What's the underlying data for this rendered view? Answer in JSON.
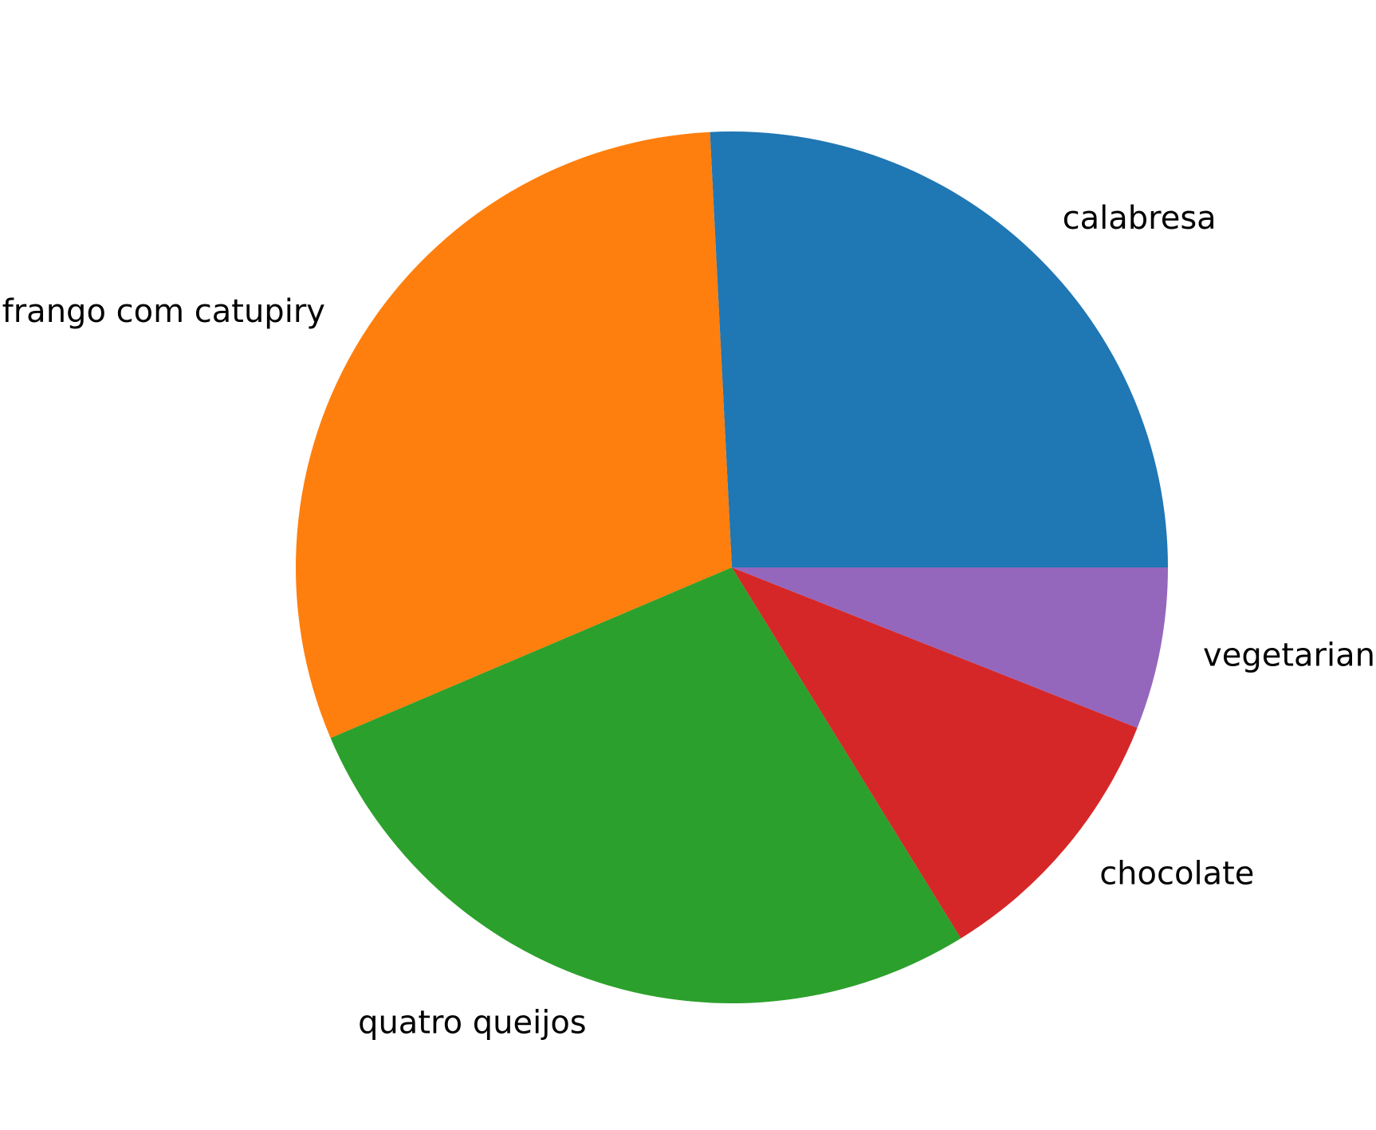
{
  "chart_data": {
    "type": "pie",
    "title": "",
    "start_angle_deg": 0,
    "direction": "counterclockwise",
    "slices": [
      {
        "label": "calabresa",
        "value": 25.8,
        "color": "#1f77b4"
      },
      {
        "label": "frango com catupiry",
        "value": 30.6,
        "color": "#ff7f0e"
      },
      {
        "label": "quatro queijos",
        "value": 27.4,
        "color": "#2ca02c"
      },
      {
        "label": "chocolate",
        "value": 10.2,
        "color": "#d62728"
      },
      {
        "label": "vegetariana",
        "value": 6.0,
        "color": "#9467bd"
      }
    ]
  }
}
